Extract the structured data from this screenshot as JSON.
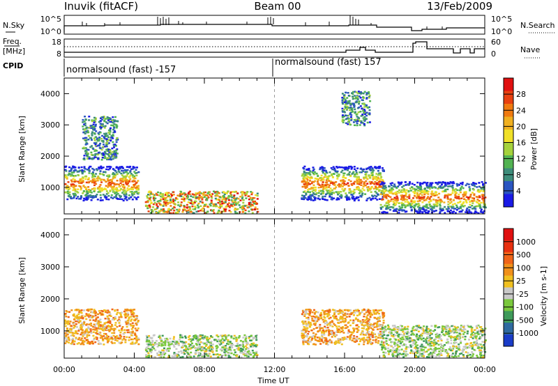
{
  "header": {
    "station": "Inuvik (fitACF)",
    "beam": "Beam 00",
    "date": "13/Feb/2009"
  },
  "strip": {
    "nsky_label": "N.Sky",
    "nsky_ticks": [
      "10^5",
      "10^0"
    ],
    "nsearch_label": "N.Search",
    "nsearch_ticks": [
      "10^5",
      "10^0"
    ],
    "freq_label": "Freq.",
    "freq_unit": "[MHz]",
    "freq_ticks": [
      "18",
      "8"
    ],
    "nave_label": "Nave",
    "nave_ticks": [
      "60",
      "0"
    ],
    "cpid_label": "CPID",
    "cpid_segments": [
      {
        "label": "normalsound (fast) -157",
        "start_hour": 0
      },
      {
        "label": "normalsound (fast) 157",
        "start_hour": 12
      }
    ]
  },
  "chart_data": [
    {
      "type": "heatmap",
      "name": "power",
      "ylabel": "Slant Range [km]",
      "xlabel": "",
      "x_range_hours": [
        0,
        24
      ],
      "ylim": [
        150,
        4500
      ],
      "yticks": [
        1000,
        2000,
        3000,
        4000
      ],
      "colorbar": {
        "label": "Power [dB]",
        "ticks": [
          "4",
          "8",
          "12",
          "16",
          "20",
          "24",
          "28"
        ],
        "colors": [
          "#1a1ae6",
          "#2a55c0",
          "#3d8c7a",
          "#52b352",
          "#a5d23c",
          "#f0e028",
          "#f0b020",
          "#f07a10",
          "#e84010",
          "#e01010"
        ]
      },
      "echo_regions": [
        {
          "t0": 0.0,
          "t1": 4.2,
          "r0": 600,
          "r1": 1700,
          "level": "high"
        },
        {
          "t0": 1.0,
          "t1": 3.0,
          "r0": 1900,
          "r1": 3300,
          "level": "low"
        },
        {
          "t0": 4.6,
          "t1": 11.0,
          "r0": 200,
          "r1": 900,
          "level": "mid"
        },
        {
          "t0": 13.5,
          "t1": 18.2,
          "r0": 600,
          "r1": 1700,
          "level": "high"
        },
        {
          "t0": 18.0,
          "t1": 24.0,
          "r0": 200,
          "r1": 1200,
          "level": "high"
        },
        {
          "t0": 15.8,
          "t1": 17.4,
          "r0": 3000,
          "r1": 4100,
          "level": "low"
        }
      ]
    },
    {
      "type": "heatmap",
      "name": "velocity",
      "ylabel": "Slant Range [km]",
      "xlabel": "Time UT",
      "x_range_hours": [
        0,
        24
      ],
      "xticks": [
        "00:00",
        "04:00",
        "08:00",
        "12:00",
        "16:00",
        "20:00",
        "00:00"
      ],
      "ylim": [
        150,
        4500
      ],
      "yticks": [
        1000,
        2000,
        3000,
        4000
      ],
      "colorbar": {
        "label": "Velocity [m s-1]",
        "ticks": [
          "1000",
          "500",
          "100",
          "25",
          "-25",
          "-100",
          "-500",
          "-1000"
        ],
        "colors": [
          "#1a3cc8",
          "#2f6aa0",
          "#3f9a5a",
          "#7ac83c",
          "#c8c8c8",
          "#f0c020",
          "#f0901a",
          "#f06418",
          "#e83010",
          "#e01010"
        ]
      },
      "echo_regions": [
        {
          "t0": 0.0,
          "t1": 4.2,
          "r0": 600,
          "r1": 1700,
          "level": "neg"
        },
        {
          "t0": 4.6,
          "t1": 11.0,
          "r0": 200,
          "r1": 900,
          "level": "pos"
        },
        {
          "t0": 13.5,
          "t1": 18.2,
          "r0": 600,
          "r1": 1700,
          "level": "neg"
        },
        {
          "t0": 18.0,
          "t1": 24.0,
          "r0": 200,
          "r1": 1200,
          "level": "pos"
        }
      ]
    }
  ]
}
